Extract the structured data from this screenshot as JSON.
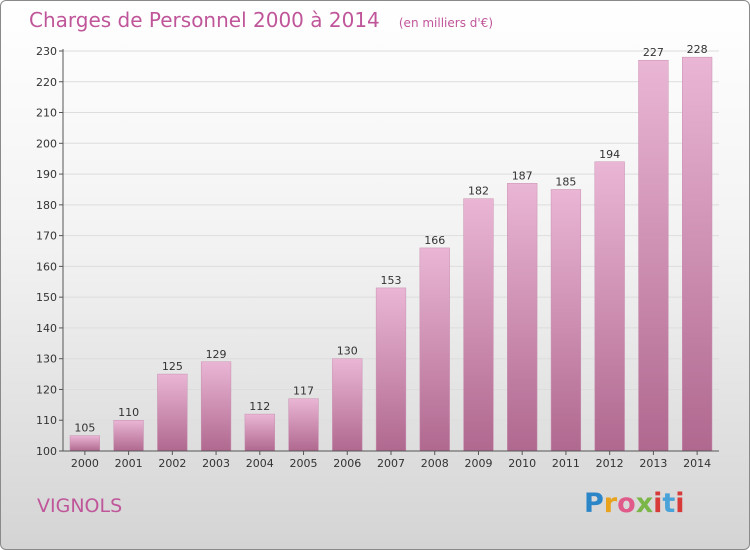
{
  "header": {
    "title": "Charges de Personnel 2000 à 2014",
    "unit": "(en milliers d'€)"
  },
  "footer": {
    "city": "VIGNOLS",
    "logo_text": "Proxiti"
  },
  "colors": {
    "bar_light": "#eab6d5",
    "bar_dark": "#b0688f",
    "title": "#c0569a"
  },
  "chart_data": {
    "type": "bar",
    "categories": [
      "2000",
      "2001",
      "2002",
      "2003",
      "2004",
      "2005",
      "2006",
      "2007",
      "2008",
      "2009",
      "2010",
      "2011",
      "2012",
      "2013",
      "2014"
    ],
    "values": [
      105,
      110,
      125,
      129,
      112,
      117,
      130,
      153,
      166,
      182,
      187,
      185,
      194,
      227,
      228
    ],
    "title": "Charges de Personnel 2000 à 2014",
    "subtitle": "(en milliers d'€)",
    "xlabel": "",
    "ylabel": "",
    "ylim": [
      100,
      230
    ],
    "yticks": [
      100,
      110,
      120,
      130,
      140,
      150,
      160,
      170,
      180,
      190,
      200,
      210,
      220,
      230
    ],
    "grid": true,
    "legend": "none"
  }
}
